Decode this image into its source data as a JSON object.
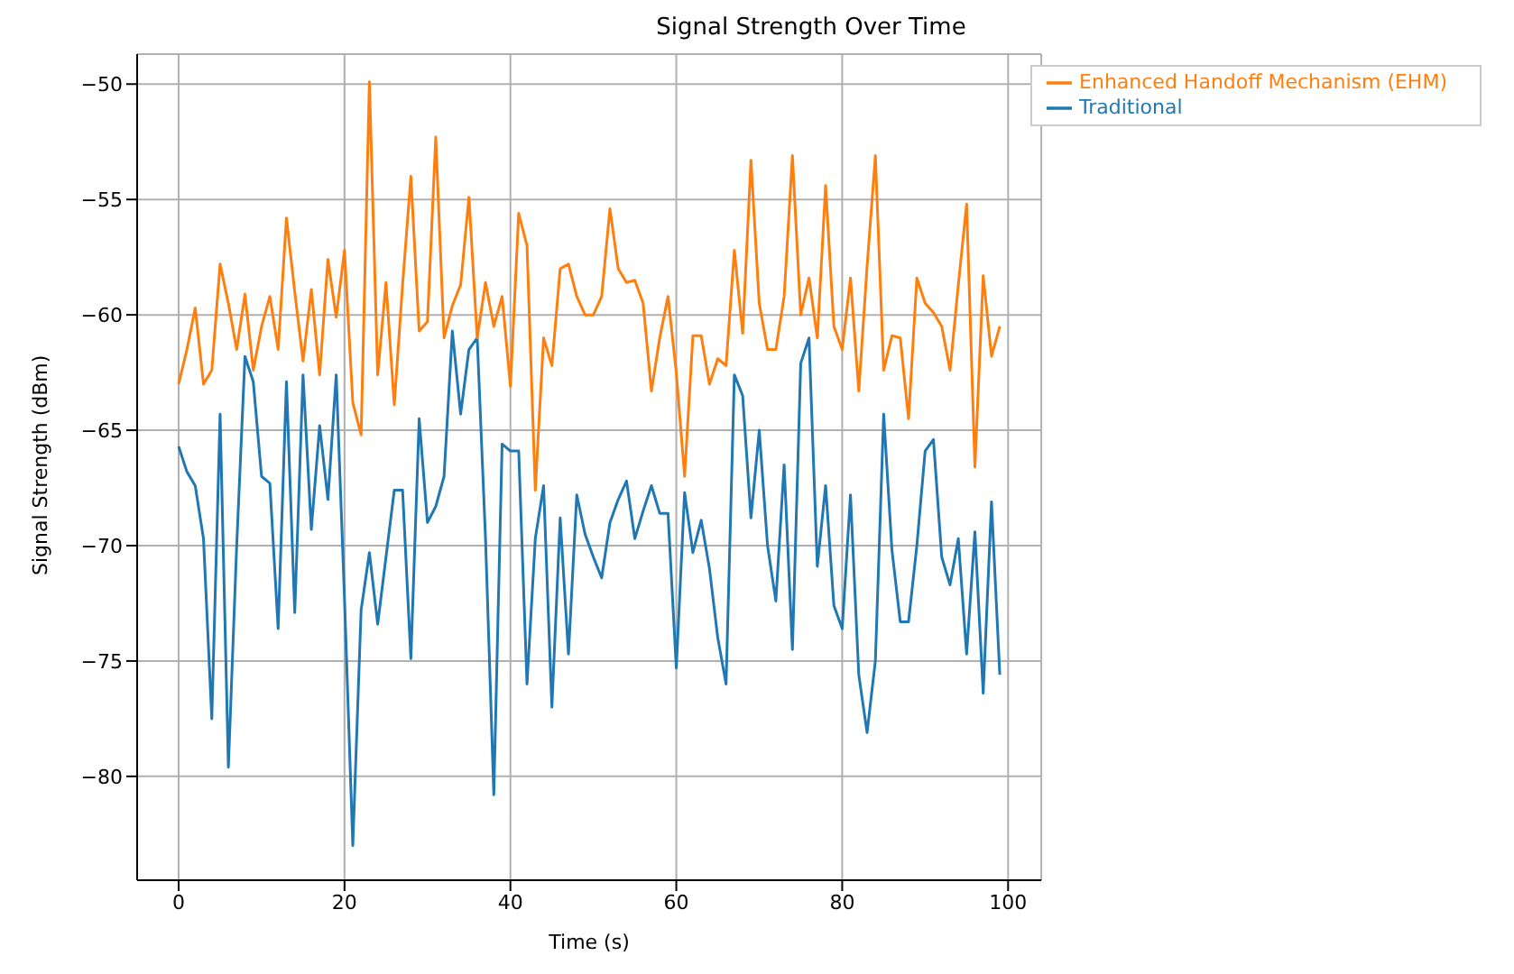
{
  "chart_data": {
    "type": "line",
    "title": "Signal Strength Over Time",
    "xlabel": "Time (s)",
    "ylabel": "Signal Strength (dBm)",
    "x": [
      0,
      1,
      2,
      3,
      4,
      5,
      6,
      7,
      8,
      9,
      10,
      11,
      12,
      13,
      14,
      15,
      16,
      17,
      18,
      19,
      20,
      21,
      22,
      23,
      24,
      25,
      26,
      27,
      28,
      29,
      30,
      31,
      32,
      33,
      34,
      35,
      36,
      37,
      38,
      39,
      40,
      41,
      42,
      43,
      44,
      45,
      46,
      47,
      48,
      49,
      50,
      51,
      52,
      53,
      54,
      55,
      56,
      57,
      58,
      59,
      60,
      61,
      62,
      63,
      64,
      65,
      66,
      67,
      68,
      69,
      70,
      71,
      72,
      73,
      74,
      75,
      76,
      77,
      78,
      79,
      80,
      81,
      82,
      83,
      84,
      85,
      86,
      87,
      88,
      89,
      90,
      91,
      92,
      93,
      94,
      95,
      96,
      97,
      98,
      99
    ],
    "series": [
      {
        "name": "Traditional",
        "color": "#1f77b4",
        "values": [
          -65.7,
          -66.8,
          -67.4,
          -69.7,
          -77.5,
          -64.3,
          -79.6,
          -70,
          -61.8,
          -62.9,
          -67,
          -67.3,
          -73.6,
          -62.9,
          -72.9,
          -62.6,
          -69.3,
          -64.8,
          -68,
          -62.6,
          -72.3,
          -83,
          -72.8,
          -70.3,
          -73.4,
          -70.5,
          -67.6,
          -67.6,
          -74.9,
          -64.5,
          -69,
          -68.3,
          -67,
          -60.7,
          -64.3,
          -61.5,
          -61,
          -69.7,
          -80.8,
          -65.6,
          -65.9,
          -65.9,
          -76,
          -69.7,
          -67.4,
          -77,
          -68.8,
          -74.7,
          -67.8,
          -69.5,
          -70.5,
          -71.4,
          -69,
          -68,
          -67.2,
          -69.7,
          -68.5,
          -67.4,
          -68.6,
          -68.6,
          -75.3,
          -67.7,
          -70.3,
          -68.9,
          -71,
          -74,
          -76,
          -62.6,
          -63.5,
          -68.8,
          -65,
          -70,
          -72.4,
          -66.5,
          -74.5,
          -62.1,
          -61,
          -70.9,
          -67.4,
          -72.6,
          -73.6,
          -67.8,
          -75.6,
          -78.1,
          -75,
          -64.3,
          -70.2,
          -73.3,
          -73.3,
          -70,
          -65.9,
          -65.4,
          -70.5,
          -71.7,
          -69.7,
          -74.7,
          -69.4,
          -76.4,
          -68.1,
          -75.6
        ]
      },
      {
        "name": "Enhanced Handoff Mechanism (EHM)",
        "color": "#ff7f0e",
        "values": [
          -63,
          -61.5,
          -59.7,
          -63,
          -62.4,
          -57.8,
          -59.5,
          -61.5,
          -59.1,
          -62.4,
          -60.5,
          -59.2,
          -61.5,
          -55.8,
          -59,
          -62,
          -58.9,
          -62.6,
          -57.6,
          -60.1,
          -57.2,
          -63.8,
          -65.2,
          -49.9,
          -62.6,
          -58.6,
          -63.9,
          -58.7,
          -54,
          -60.7,
          -60.3,
          -52.3,
          -61,
          -59.6,
          -58.7,
          -54.9,
          -61,
          -58.6,
          -60.5,
          -59.2,
          -63.1,
          -55.6,
          -57,
          -67.6,
          -61,
          -62.2,
          -58,
          -57.8,
          -59.2,
          -60,
          -60,
          -59.2,
          -55.4,
          -58,
          -58.6,
          -58.5,
          -59.5,
          -63.3,
          -61,
          -59.2,
          -62.5,
          -67,
          -60.9,
          -60.9,
          -63,
          -61.9,
          -62.2,
          -57.2,
          -60.8,
          -53.3,
          -59.5,
          -61.5,
          -61.5,
          -59.2,
          -53.1,
          -60,
          -58.4,
          -61,
          -54.4,
          -60.5,
          -61.5,
          -58.4,
          -63.3,
          -57.9,
          -53.1,
          -62.4,
          -60.9,
          -61,
          -64.5,
          -58.4,
          -59.5,
          -59.9,
          -60.5,
          -62.4,
          -58.7,
          -55.2,
          -66.6,
          -58.3,
          -61.8,
          -60.5
        ]
      }
    ],
    "xlim": [
      -5,
      104
    ],
    "ylim": [
      -84.5,
      -48.7
    ],
    "xticks": [
      0,
      20,
      40,
      60,
      80,
      100
    ],
    "yticks": [
      -80,
      -75,
      -70,
      -65,
      -60,
      -55,
      -50
    ],
    "grid": true,
    "legend": "top right",
    "line_style": "solid",
    "marker": "none"
  }
}
